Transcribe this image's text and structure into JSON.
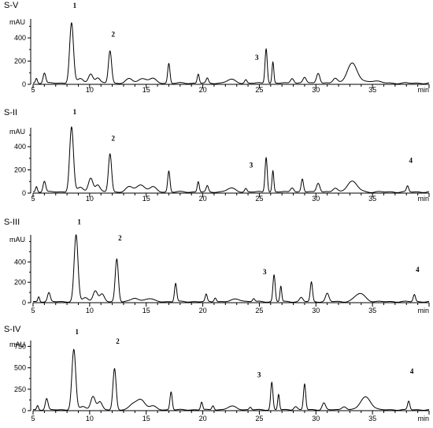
{
  "chart_data": [
    {
      "type": "line",
      "title": "S-V",
      "ylabel": "mAU",
      "xlabel": "min",
      "xlim": [
        5,
        40
      ],
      "ylim": [
        0,
        550
      ],
      "xticks": [
        5,
        10,
        15,
        20,
        25,
        30,
        35
      ],
      "yticks": [
        0,
        200,
        400
      ],
      "baseline": 10,
      "peaks": [
        [
          5.3,
          40,
          0.08
        ],
        [
          6.0,
          90,
          0.12
        ],
        [
          8.4,
          520,
          0.17
        ],
        [
          9.2,
          40,
          0.25
        ],
        [
          10.1,
          80,
          0.2
        ],
        [
          10.7,
          45,
          0.2
        ],
        [
          11.8,
          280,
          0.14
        ],
        [
          13.5,
          35,
          0.3
        ],
        [
          14.7,
          40,
          0.4
        ],
        [
          15.6,
          35,
          0.3
        ],
        [
          17.0,
          170,
          0.1
        ],
        [
          19.6,
          80,
          0.09
        ],
        [
          20.4,
          40,
          0.1
        ],
        [
          22.5,
          30,
          0.4
        ],
        [
          23.8,
          30,
          0.1
        ],
        [
          25.6,
          300,
          0.1
        ],
        [
          26.2,
          180,
          0.08
        ],
        [
          27.9,
          45,
          0.15
        ],
        [
          29.0,
          50,
          0.15
        ],
        [
          30.2,
          90,
          0.15
        ],
        [
          31.7,
          40,
          0.2
        ],
        [
          33.2,
          170,
          0.45
        ],
        [
          35.0,
          20,
          0.6
        ]
      ],
      "peak_labels": [
        {
          "label": "1",
          "x": 8.4,
          "y": 660
        },
        {
          "label": "2",
          "x": 11.8,
          "y": 410
        },
        {
          "label": "3",
          "x": 24.5,
          "y": 210
        }
      ]
    },
    {
      "type": "line",
      "title": "S-II",
      "ylabel": "mAU",
      "xlabel": "min",
      "xlim": [
        5,
        40
      ],
      "ylim": [
        0,
        550
      ],
      "xticks": [
        5,
        10,
        15,
        20,
        25,
        30,
        35
      ],
      "yticks": [
        0,
        200,
        400
      ],
      "baseline": 10,
      "peaks": [
        [
          5.3,
          45,
          0.08
        ],
        [
          6.0,
          95,
          0.12
        ],
        [
          8.4,
          560,
          0.17
        ],
        [
          9.2,
          40,
          0.25
        ],
        [
          10.1,
          120,
          0.2
        ],
        [
          10.7,
          60,
          0.2
        ],
        [
          11.8,
          330,
          0.14
        ],
        [
          13.5,
          40,
          0.3
        ],
        [
          14.5,
          60,
          0.4
        ],
        [
          15.6,
          40,
          0.3
        ],
        [
          17.0,
          180,
          0.1
        ],
        [
          19.6,
          90,
          0.09
        ],
        [
          20.4,
          50,
          0.1
        ],
        [
          22.5,
          30,
          0.4
        ],
        [
          23.8,
          30,
          0.1
        ],
        [
          25.6,
          300,
          0.1
        ],
        [
          26.2,
          180,
          0.08
        ],
        [
          27.9,
          40,
          0.15
        ],
        [
          28.8,
          110,
          0.1
        ],
        [
          30.2,
          80,
          0.15
        ],
        [
          31.7,
          30,
          0.2
        ],
        [
          33.2,
          90,
          0.45
        ],
        [
          38.1,
          50,
          0.1
        ]
      ],
      "peak_labels": [
        {
          "label": "1",
          "x": 8.4,
          "y": 680
        },
        {
          "label": "2",
          "x": 11.8,
          "y": 450
        },
        {
          "label": "3",
          "x": 24.0,
          "y": 220
        },
        {
          "label": "4",
          "x": 38.1,
          "y": 260
        }
      ]
    },
    {
      "type": "line",
      "title": "S-III",
      "ylabel": "mAU",
      "xlabel": "min",
      "xlim": [
        5,
        40
      ],
      "ylim": [
        0,
        650
      ],
      "xticks": [
        5,
        10,
        15,
        20,
        25,
        30,
        35
      ],
      "yticks": [
        0,
        200,
        400
      ],
      "baseline": 10,
      "peaks": [
        [
          5.5,
          50,
          0.08
        ],
        [
          6.4,
          85,
          0.12
        ],
        [
          8.8,
          650,
          0.17
        ],
        [
          9.6,
          40,
          0.25
        ],
        [
          10.5,
          110,
          0.2
        ],
        [
          11.1,
          70,
          0.2
        ],
        [
          12.4,
          420,
          0.14
        ],
        [
          14.0,
          35,
          0.3
        ],
        [
          15.2,
          30,
          0.4
        ],
        [
          17.6,
          180,
          0.1
        ],
        [
          20.3,
          70,
          0.09
        ],
        [
          21.1,
          40,
          0.1
        ],
        [
          23.0,
          25,
          0.4
        ],
        [
          24.5,
          30,
          0.1
        ],
        [
          26.3,
          260,
          0.1
        ],
        [
          26.9,
          150,
          0.08
        ],
        [
          28.7,
          40,
          0.15
        ],
        [
          29.6,
          190,
          0.1
        ],
        [
          31.0,
          80,
          0.15
        ],
        [
          33.9,
          80,
          0.45
        ],
        [
          38.7,
          70,
          0.1
        ]
      ],
      "peak_labels": [
        {
          "label": "1",
          "x": 8.8,
          "y": 770
        },
        {
          "label": "2",
          "x": 12.4,
          "y": 610
        },
        {
          "label": "3",
          "x": 25.2,
          "y": 280
        },
        {
          "label": "4",
          "x": 38.7,
          "y": 300
        }
      ]
    },
    {
      "type": "line",
      "title": "S-IV",
      "ylabel": "mAU",
      "xlabel": "min",
      "xlim": [
        5,
        40
      ],
      "ylim": [
        0,
        800
      ],
      "xticks": [
        5,
        10,
        15,
        20,
        25,
        30,
        35
      ],
      "yticks": [
        0,
        250,
        500,
        750
      ],
      "baseline": 10,
      "peaks": [
        [
          5.4,
          50,
          0.08
        ],
        [
          6.2,
          130,
          0.12
        ],
        [
          8.6,
          700,
          0.17
        ],
        [
          9.4,
          40,
          0.25
        ],
        [
          10.3,
          160,
          0.2
        ],
        [
          10.9,
          90,
          0.2
        ],
        [
          12.2,
          480,
          0.14
        ],
        [
          13.8,
          50,
          0.3
        ],
        [
          14.5,
          120,
          0.4
        ],
        [
          15.6,
          40,
          0.3
        ],
        [
          17.2,
          210,
          0.1
        ],
        [
          19.9,
          90,
          0.09
        ],
        [
          20.9,
          50,
          0.1
        ],
        [
          22.6,
          40,
          0.4
        ],
        [
          24.2,
          30,
          0.1
        ],
        [
          26.1,
          320,
          0.1
        ],
        [
          26.7,
          180,
          0.08
        ],
        [
          28.2,
          40,
          0.15
        ],
        [
          29.0,
          300,
          0.1
        ],
        [
          30.7,
          80,
          0.15
        ],
        [
          32.5,
          40,
          0.2
        ],
        [
          34.4,
          150,
          0.45
        ],
        [
          38.2,
          100,
          0.1
        ]
      ],
      "peak_labels": [
        {
          "label": "1",
          "x": 8.6,
          "y": 890
        },
        {
          "label": "2",
          "x": 12.2,
          "y": 780
        },
        {
          "label": "3",
          "x": 24.7,
          "y": 390
        },
        {
          "label": "4",
          "x": 38.2,
          "y": 430
        }
      ]
    }
  ]
}
